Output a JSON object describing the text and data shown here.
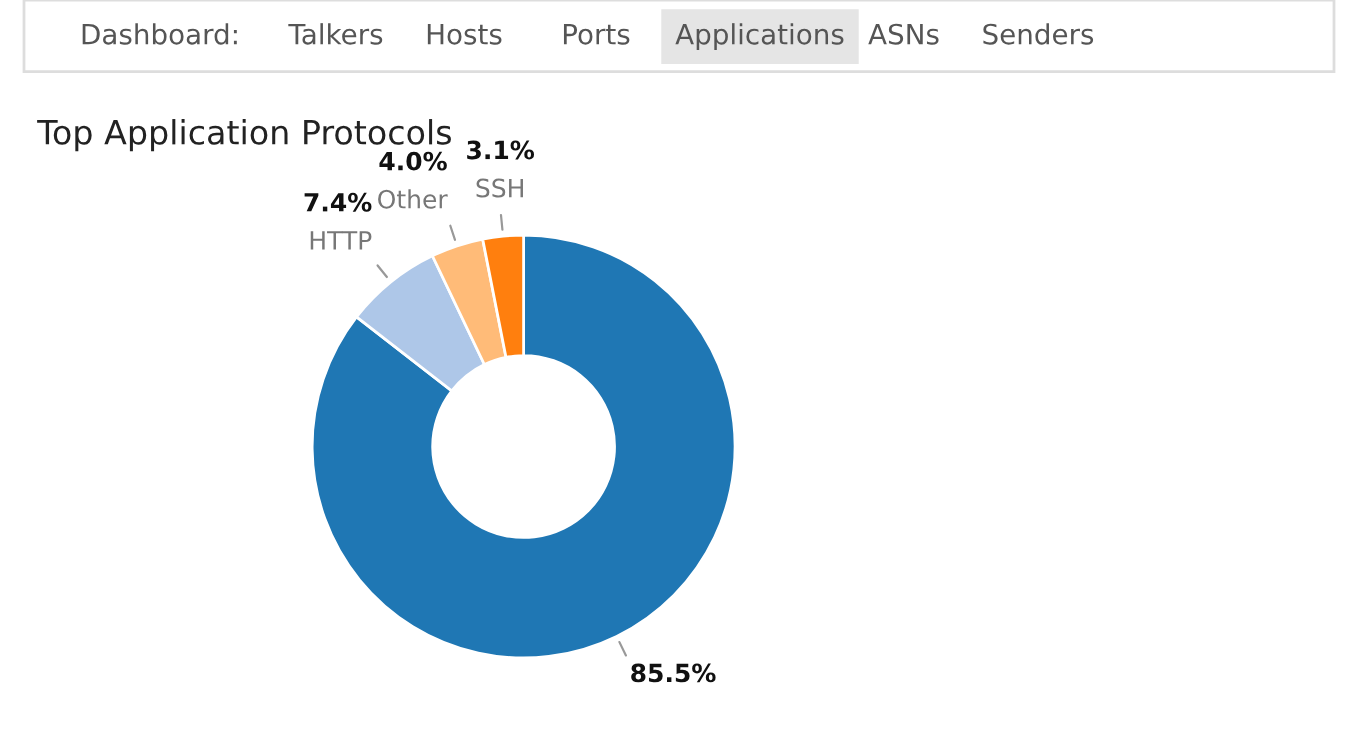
{
  "chart_data": [
    {
      "type": "other",
      "annotations": [
        "Dashboard:",
        "Talkers",
        "Hosts",
        "Ports",
        "Applications",
        "ASNs",
        "Senders"
      ]
    },
    {
      "type": "donut",
      "title": "Top Application Protocols",
      "categories": [
        null,
        "HTTP",
        "Other",
        "SSH"
      ],
      "values": [
        85.5,
        7.4,
        4.0,
        3.1
      ],
      "value_labels": [
        "85.5%",
        "7.4%",
        "4.0%",
        "3.1%"
      ],
      "colors": [
        "#1f77b4",
        "#aec7e8",
        "#ffbb78",
        "#ff7f0e"
      ]
    }
  ]
}
